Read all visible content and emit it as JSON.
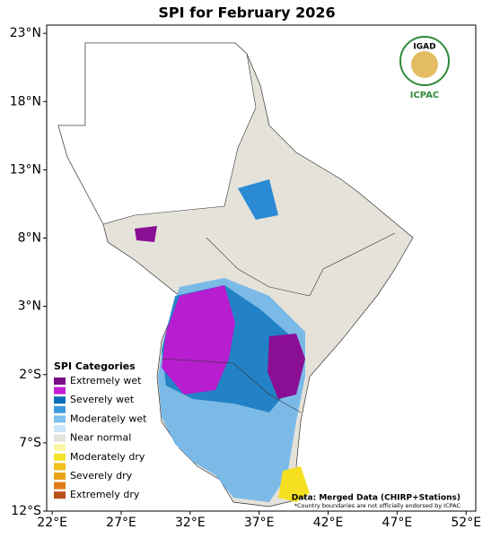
{
  "map": {
    "title": "SPI for February 2026",
    "lonlim": [
      21.6,
      52.7
    ],
    "latlim": [
      -12,
      23.6
    ],
    "lonticks": [
      {
        "value": 22,
        "label": "22°E"
      },
      {
        "value": 27,
        "label": "27°E"
      },
      {
        "value": 32,
        "label": "32°E"
      },
      {
        "value": 37,
        "label": "37°E"
      },
      {
        "value": 42,
        "label": "42°E"
      },
      {
        "value": 47,
        "label": "47°E"
      },
      {
        "value": 52,
        "label": "52°E"
      }
    ],
    "latticks": [
      {
        "value": 23,
        "label": "23°N"
      },
      {
        "value": 18,
        "label": "18°N"
      },
      {
        "value": 13,
        "label": "13°N"
      },
      {
        "value": 8,
        "label": "8°N"
      },
      {
        "value": 3,
        "label": "3°N"
      },
      {
        "value": -2,
        "label": "2°S"
      },
      {
        "value": -7,
        "label": "7°S"
      },
      {
        "value": -12,
        "label": "12°S"
      }
    ],
    "legend": {
      "title": "SPI Categories",
      "items": [
        {
          "label": "Extremely wet",
          "color": "#7a0a84"
        },
        {
          "label": null,
          "color": "#c21fd6"
        },
        {
          "label": "Severely wet",
          "color": "#0b6fb8"
        },
        {
          "label": null,
          "color": "#3d9be0"
        },
        {
          "label": "Moderately wet",
          "color": "#7cc0ec"
        },
        {
          "label": null,
          "color": "#c8e6f7"
        },
        {
          "label": "Near normal",
          "color": "#e5e2da"
        },
        {
          "label": null,
          "color": "#fbf6a8"
        },
        {
          "label": "Moderately dry",
          "color": "#f5e22a"
        },
        {
          "label": null,
          "color": "#efc11a"
        },
        {
          "label": "Severely dry",
          "color": "#e9a41a"
        },
        {
          "label": null,
          "color": "#e07c18"
        },
        {
          "label": "Extremely dry",
          "color": "#b8501a"
        }
      ]
    },
    "logo": {
      "top": "IGAD",
      "bottom": "ICPAC"
    },
    "source": "Data: Merged Data (CHIRP+Stations)",
    "disclaimer": "*Country boundaries are not officially endorsed by ICPAC"
  }
}
